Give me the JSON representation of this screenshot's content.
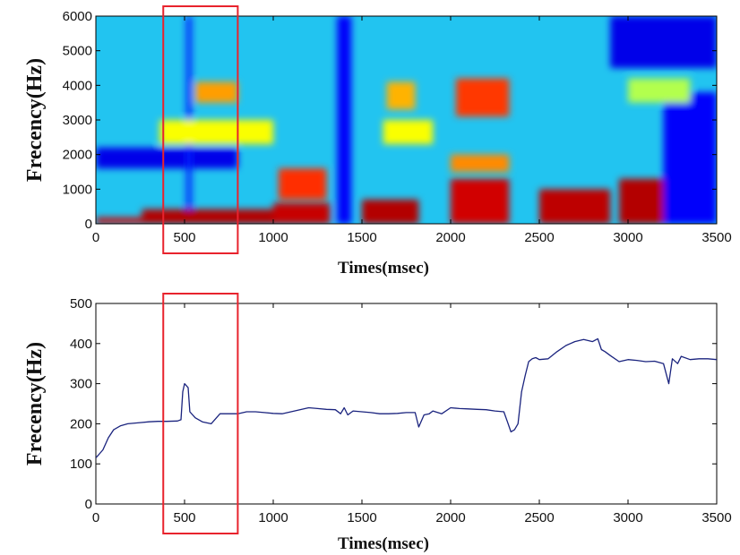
{
  "chart_data": [
    {
      "type": "heatmap",
      "subtype": "spectrogram",
      "xlabel": "Times(msec)",
      "ylabel": "Frecency(Hz)",
      "xlim": [
        0,
        3500
      ],
      "ylim": [
        0,
        6000
      ],
      "xticks": [
        0,
        500,
        1000,
        1500,
        2000,
        2500,
        3000,
        3500
      ],
      "yticks": [
        0,
        1000,
        2000,
        3000,
        4000,
        5000,
        6000
      ],
      "colormap": [
        "#00008f",
        "#0000ff",
        "#0080ff",
        "#00ffff",
        "#80ff80",
        "#ffff00",
        "#ff8000",
        "#ff0000",
        "#800000"
      ],
      "formant_bands": [
        {
          "x": [
            0,
            260
          ],
          "y": [
            0,
            180
          ],
          "level": 0.92
        },
        {
          "x": [
            260,
            1000
          ],
          "y": [
            0,
            420
          ],
          "level": 0.95
        },
        {
          "x": [
            1000,
            1320
          ],
          "y": [
            0,
            600
          ],
          "level": 0.93
        },
        {
          "x": [
            1030,
            1300
          ],
          "y": [
            700,
            1600
          ],
          "level": 0.83
        },
        {
          "x": [
            1500,
            1820
          ],
          "y": [
            0,
            700
          ],
          "level": 0.95
        },
        {
          "x": [
            2000,
            2330
          ],
          "y": [
            0,
            1300
          ],
          "level": 0.92
        },
        {
          "x": [
            2000,
            2330
          ],
          "y": [
            1500,
            2000
          ],
          "level": 0.74
        },
        {
          "x": [
            2030,
            2330
          ],
          "y": [
            3100,
            4200
          ],
          "level": 0.82
        },
        {
          "x": [
            2500,
            2900
          ],
          "y": [
            0,
            1000
          ],
          "level": 0.94
        },
        {
          "x": [
            2950,
            3200
          ],
          "y": [
            0,
            1300
          ],
          "level": 0.95
        },
        {
          "x": [
            360,
            1000
          ],
          "y": [
            2300,
            3000
          ],
          "level": 0.62
        },
        {
          "x": [
            560,
            800
          ],
          "y": [
            3500,
            4100
          ],
          "level": 0.72
        },
        {
          "x": [
            1640,
            1800
          ],
          "y": [
            3300,
            4100
          ],
          "level": 0.7
        },
        {
          "x": [
            1620,
            1900
          ],
          "y": [
            2300,
            3000
          ],
          "level": 0.62
        },
        {
          "x": [
            3000,
            3350
          ],
          "y": [
            3500,
            4200
          ],
          "level": 0.55
        }
      ],
      "low_energy_bands": [
        {
          "x": [
            0,
            800
          ],
          "y": [
            1600,
            2200
          ],
          "level": 0.1
        },
        {
          "x": [
            1360,
            1440
          ],
          "y": [
            0,
            6000
          ],
          "level": 0.12
        },
        {
          "x": [
            510,
            540
          ],
          "y": [
            0,
            6000
          ],
          "level": 0.15
        },
        {
          "x": [
            2900,
            3500
          ],
          "y": [
            4500,
            6000
          ],
          "level": 0.1
        },
        {
          "x": [
            3200,
            3500
          ],
          "y": [
            0,
            3800
          ],
          "level": 0.12
        }
      ],
      "highlight": {
        "x": [
          380,
          800
        ],
        "color": "#e8232d"
      }
    },
    {
      "type": "line",
      "xlabel": "Times(msec)",
      "ylabel": "Frecency(Hz)",
      "xlim": [
        0,
        3500
      ],
      "ylim": [
        0,
        500
      ],
      "xticks": [
        0,
        500,
        1000,
        1500,
        2000,
        2500,
        3000,
        3500
      ],
      "yticks": [
        0,
        100,
        200,
        300,
        400,
        500
      ],
      "line_color": "#1a237e",
      "series": [
        {
          "x": [
            0,
            20,
            40,
            70,
            100,
            140,
            180,
            250,
            300,
            350,
            400,
            460,
            480,
            490,
            500,
            510,
            520,
            530,
            560,
            600,
            650,
            700,
            750,
            800,
            850,
            900,
            950,
            1000,
            1050,
            1100,
            1150,
            1200,
            1250,
            1300,
            1350,
            1380,
            1400,
            1420,
            1450,
            1500,
            1550,
            1600,
            1650,
            1700,
            1750,
            1800,
            1820,
            1850,
            1880,
            1900,
            1950,
            2000,
            2050,
            2100,
            2150,
            2200,
            2250,
            2300,
            2320,
            2340,
            2360,
            2380,
            2400,
            2420,
            2440,
            2460,
            2480,
            2500,
            2550,
            2600,
            2650,
            2700,
            2750,
            2800,
            2830,
            2850,
            2870,
            2900,
            2950,
            3000,
            3050,
            3100,
            3150,
            3200,
            3230,
            3250,
            3280,
            3300,
            3350,
            3400,
            3450,
            3500
          ],
          "y": [
            115,
            125,
            135,
            165,
            185,
            195,
            200,
            203,
            205,
            206,
            206,
            207,
            210,
            280,
            300,
            295,
            290,
            230,
            215,
            205,
            200,
            225,
            225,
            225,
            230,
            230,
            228,
            226,
            225,
            230,
            235,
            240,
            238,
            236,
            235,
            225,
            240,
            222,
            232,
            230,
            228,
            225,
            225,
            226,
            228,
            228,
            192,
            222,
            225,
            232,
            225,
            240,
            238,
            237,
            236,
            235,
            232,
            230,
            205,
            180,
            185,
            200,
            280,
            320,
            355,
            362,
            365,
            360,
            362,
            380,
            395,
            405,
            410,
            405,
            412,
            385,
            380,
            370,
            355,
            360,
            358,
            355,
            356,
            350,
            300,
            362,
            350,
            368,
            360,
            362,
            362,
            360
          ]
        }
      ],
      "highlight": {
        "x": [
          380,
          800
        ],
        "color": "#e8232d"
      }
    }
  ]
}
